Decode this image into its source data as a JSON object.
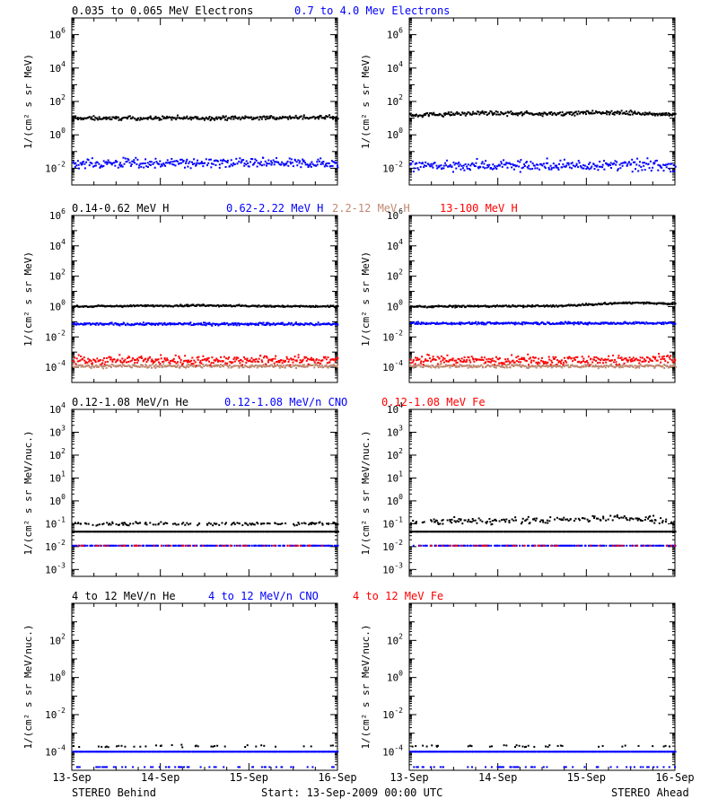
{
  "colors": {
    "black": "#000000",
    "blue": "#0000ff",
    "brown": "#c08870",
    "red": "#ff0000",
    "purple": "#a020a0"
  },
  "x_ticks": [
    "13-Sep",
    "14-Sep",
    "15-Sep",
    "16-Sep"
  ],
  "footer": {
    "left": "STEREO Behind",
    "center": "Start: 13-Sep-2009 00:00 UTC",
    "right": "STEREO Ahead"
  },
  "chart_data": [
    {
      "type": "scatter",
      "row": "electrons",
      "ylabel": "1/(cm² s sr MeV)",
      "yscale": "log",
      "ylim": [
        0.001,
        10000000
      ],
      "ytick_exponents": [
        -2,
        0,
        2,
        4,
        6
      ],
      "legend": [
        {
          "text": "0.035 to 0.065 MeV Electrons",
          "color": "#000000"
        },
        {
          "text": "0.7 to 4.0 Mev Electrons",
          "color": "#0000ff"
        }
      ],
      "panels": [
        {
          "spacecraft": "STEREO Behind",
          "series": [
            {
              "color": "#000000",
              "profile": [
                [
                  0,
                  10
                ],
                [
                  1,
                  10
                ],
                [
                  2,
                  10.5
                ],
                [
                  3,
                  11
                ]
              ],
              "scatter_dex": 0.1,
              "density": 1
            },
            {
              "color": "#0000ff",
              "profile": [
                [
                  0,
                  0.02
                ],
                [
                  3,
                  0.02
                ]
              ],
              "scatter_dex": 0.25,
              "density": 1
            }
          ]
        },
        {
          "spacecraft": "STEREO Ahead",
          "series": [
            {
              "color": "#000000",
              "profile": [
                [
                  0,
                  15
                ],
                [
                  0.9,
                  20
                ],
                [
                  1.5,
                  18
                ],
                [
                  2.2,
                  22
                ],
                [
                  3,
                  17
                ]
              ],
              "scatter_dex": 0.1,
              "density": 1
            },
            {
              "color": "#0000ff",
              "profile": [
                [
                  0,
                  0.015
                ],
                [
                  3,
                  0.015
                ]
              ],
              "scatter_dex": 0.3,
              "density": 1
            }
          ]
        }
      ]
    },
    {
      "type": "scatter",
      "row": "protons",
      "ylabel": "1/(cm² s sr MeV)",
      "yscale": "log",
      "ylim": [
        1e-05,
        1000000
      ],
      "ytick_exponents": [
        -4,
        -2,
        0,
        2,
        4,
        6
      ],
      "legend": [
        {
          "text": "0.14-0.62 MeV H",
          "color": "#000000"
        },
        {
          "text": "0.62-2.22 MeV H",
          "color": "#0000ff"
        },
        {
          "text": "2.2-12 MeV H",
          "color": "#c08870"
        },
        {
          "text": "13-100 MeV H",
          "color": "#ff0000"
        }
      ],
      "panels": [
        {
          "spacecraft": "STEREO Behind",
          "series": [
            {
              "color": "#000000",
              "profile": [
                [
                  0,
                  1
                ],
                [
                  1.5,
                  1.2
                ],
                [
                  2.2,
                  1.05
                ],
                [
                  3,
                  1
                ]
              ],
              "scatter_dex": 0.05,
              "density": 1
            },
            {
              "color": "#0000ff",
              "profile": [
                [
                  0,
                  0.07
                ],
                [
                  3,
                  0.07
                ]
              ],
              "scatter_dex": 0.07,
              "density": 1
            },
            {
              "color": "#c08870",
              "profile": [
                [
                  0,
                  0.00012
                ],
                [
                  3,
                  0.00012
                ]
              ],
              "scatter_dex": 0.1,
              "density": 1
            },
            {
              "color": "#ff0000",
              "profile": [
                [
                  0,
                  0.0003
                ],
                [
                  3,
                  0.0003
                ]
              ],
              "scatter_dex": 0.25,
              "density": 1
            }
          ]
        },
        {
          "spacecraft": "STEREO Ahead",
          "series": [
            {
              "color": "#000000",
              "profile": [
                [
                  0,
                  1
                ],
                [
                  1.7,
                  1.1
                ],
                [
                  2.5,
                  1.8
                ],
                [
                  3,
                  1.5
                ]
              ],
              "scatter_dex": 0.05,
              "density": 1
            },
            {
              "color": "#0000ff",
              "profile": [
                [
                  0,
                  0.08
                ],
                [
                  3,
                  0.08
                ]
              ],
              "scatter_dex": 0.07,
              "density": 1
            },
            {
              "color": "#c08870",
              "profile": [
                [
                  0,
                  0.00012
                ],
                [
                  3,
                  0.00012
                ]
              ],
              "scatter_dex": 0.1,
              "density": 1
            },
            {
              "color": "#ff0000",
              "profile": [
                [
                  0,
                  0.0003
                ],
                [
                  3,
                  0.0003
                ]
              ],
              "scatter_dex": 0.25,
              "density": 1
            }
          ]
        }
      ]
    },
    {
      "type": "scatter",
      "row": "low-energy heavy ions",
      "ylabel": "1/(cm² s sr MeV/nuc.)",
      "yscale": "log",
      "ylim": [
        0.0005,
        10000
      ],
      "ytick_exponents": [
        -3,
        -2,
        -1,
        0,
        1,
        2,
        3,
        4
      ],
      "legend": [
        {
          "text": "0.12-1.08 MeV/n He",
          "color": "#000000"
        },
        {
          "text": "0.12-1.08 MeV/n CNO",
          "color": "#0000ff"
        },
        {
          "text": "0.12-1.08 MeV Fe",
          "color": "#ff0000"
        }
      ],
      "panels": [
        {
          "spacecraft": "STEREO Behind",
          "series": [
            {
              "color": "#000000",
              "profile": [
                [
                  0,
                  0.045
                ],
                [
                  3,
                  0.045
                ]
              ],
              "scatter_dex": 0,
              "density": 1
            },
            {
              "color": "#000000",
              "profile": [
                [
                  0,
                  0.1
                ],
                [
                  3,
                  0.1
                ]
              ],
              "scatter_dex": 0.06,
              "density": 0.5
            },
            {
              "color": "#0000ff",
              "profile": [
                [
                  0,
                  0.011
                ],
                [
                  3,
                  0.011
                ]
              ],
              "scatter_dex": 0,
              "density": 0.6
            },
            {
              "color": "#ff0000",
              "profile": [
                [
                  0,
                  0.011
                ],
                [
                  3,
                  0.011
                ]
              ],
              "scatter_dex": 0,
              "density": 0.15
            }
          ]
        },
        {
          "spacecraft": "STEREO Ahead",
          "series": [
            {
              "color": "#000000",
              "profile": [
                [
                  0,
                  0.045
                ],
                [
                  3,
                  0.045
                ]
              ],
              "scatter_dex": 0,
              "density": 1
            },
            {
              "color": "#000000",
              "profile": [
                [
                  0,
                  0.12
                ],
                [
                  1.8,
                  0.15
                ],
                [
                  2.4,
                  0.2
                ],
                [
                  3,
                  0.12
                ]
              ],
              "scatter_dex": 0.12,
              "density": 0.6
            },
            {
              "color": "#0000ff",
              "profile": [
                [
                  0,
                  0.011
                ],
                [
                  3,
                  0.011
                ]
              ],
              "scatter_dex": 0,
              "density": 0.6
            },
            {
              "color": "#ff0000",
              "profile": [
                [
                  0,
                  0.011
                ],
                [
                  3,
                  0.011
                ]
              ],
              "scatter_dex": 0,
              "density": 0.15
            }
          ]
        }
      ]
    },
    {
      "type": "scatter",
      "row": "high-energy heavy ions",
      "ylabel": "1/(cm² s sr MeV/nuc.)",
      "yscale": "log",
      "ylim": [
        1e-05,
        10000
      ],
      "ytick_exponents": [
        -4,
        -2,
        0,
        2
      ],
      "legend": [
        {
          "text": "4 to 12 MeV/n He",
          "color": "#000000"
        },
        {
          "text": "4 to 12 MeV/n CNO",
          "color": "#0000ff"
        },
        {
          "text": "4 to 12 MeV Fe",
          "color": "#ff0000"
        }
      ],
      "panels": [
        {
          "spacecraft": "STEREO Behind",
          "series": [
            {
              "color": "#0000ff",
              "profile": [
                [
                  0,
                  0.0001
                ],
                [
                  3,
                  0.0001
                ]
              ],
              "scatter_dex": 0,
              "density": 1
            },
            {
              "color": "#000000",
              "profile": [
                [
                  0,
                  0.0002
                ],
                [
                  3,
                  0.0002
                ]
              ],
              "scatter_dex": 0.05,
              "density": 0.12
            },
            {
              "color": "#0000ff",
              "profile": [
                [
                  0,
                  1.5e-05
                ],
                [
                  3,
                  1.5e-05
                ]
              ],
              "scatter_dex": 0,
              "density": 0.2
            }
          ]
        },
        {
          "spacecraft": "STEREO Ahead",
          "series": [
            {
              "color": "#0000ff",
              "profile": [
                [
                  0,
                  0.0001
                ],
                [
                  3,
                  0.0001
                ]
              ],
              "scatter_dex": 0,
              "density": 1
            },
            {
              "color": "#000000",
              "profile": [
                [
                  0,
                  0.0002
                ],
                [
                  3,
                  0.0002
                ]
              ],
              "scatter_dex": 0.05,
              "density": 0.1
            },
            {
              "color": "#0000ff",
              "profile": [
                [
                  0,
                  1.5e-05
                ],
                [
                  3,
                  1.5e-05
                ]
              ],
              "scatter_dex": 0,
              "density": 0.2
            }
          ]
        }
      ]
    }
  ]
}
